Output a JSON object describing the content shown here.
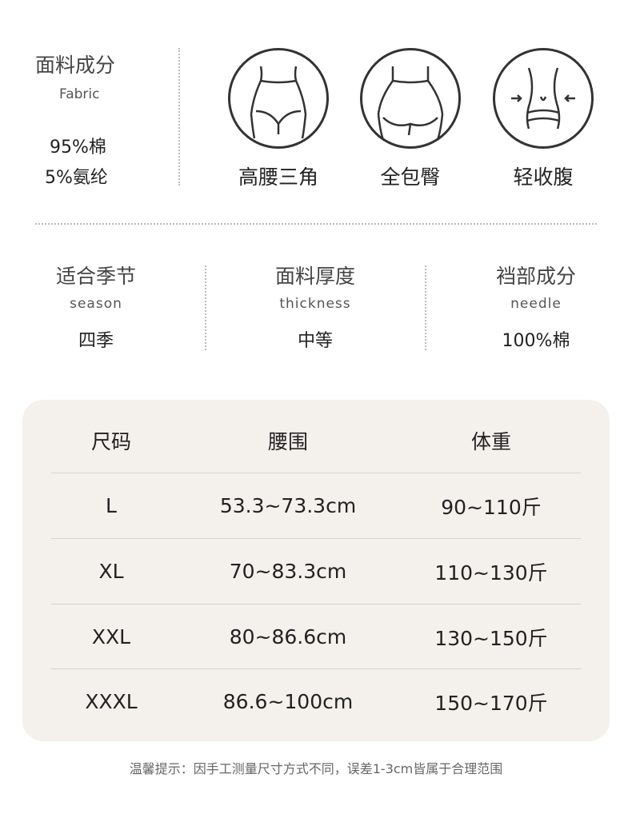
{
  "fabric": {
    "title": "面料成分",
    "subtitle": "Fabric",
    "lines": [
      "95%棉",
      "5%氨纶"
    ]
  },
  "features": [
    {
      "icon": "high-waist-brief-icon",
      "label": "高腰三角"
    },
    {
      "icon": "full-hip-coverage-icon",
      "label": "全包臀"
    },
    {
      "icon": "tummy-control-icon",
      "label": "轻收腹"
    }
  ],
  "specs": [
    {
      "title": "适合季节",
      "subtitle": "season",
      "value": "四季"
    },
    {
      "title": "面料厚度",
      "subtitle": "thickness",
      "value": "中等"
    },
    {
      "title": "裆部成分",
      "subtitle": "needle",
      "value": "100%棉"
    }
  ],
  "size_table": {
    "headers": [
      "尺码",
      "腰围",
      "体重"
    ],
    "rows": [
      [
        "L",
        "53.3~73.3cm",
        "90~110斤"
      ],
      [
        "XL",
        "70~83.3cm",
        "110~130斤"
      ],
      [
        "XXL",
        "80~86.6cm",
        "130~150斤"
      ],
      [
        "XXXL",
        "86.6~100cm",
        "150~170斤"
      ]
    ]
  },
  "note": "温馨提示：因手工测量尺寸方式不同，误差1-3cm皆属于合理范围"
}
